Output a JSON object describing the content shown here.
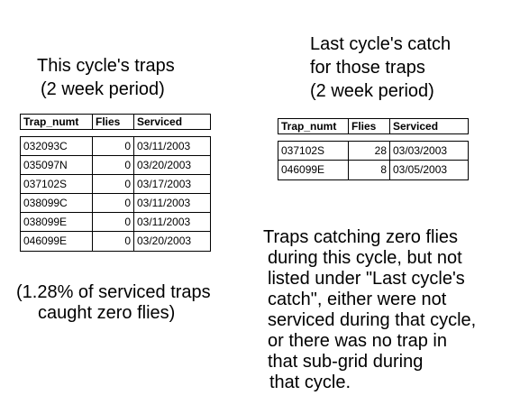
{
  "left_caption": {
    "line1": "This cycle's traps",
    "line2": "(2 week period)"
  },
  "right_caption": {
    "line1": "Last cycle's catch",
    "line2": "for those traps",
    "line3": "(2 week period)"
  },
  "columns": {
    "trap": "Trap_numt",
    "flies": "Flies",
    "serviced": "Serviced"
  },
  "this_cycle_rows": [
    {
      "trap": "032093C",
      "flies": "0",
      "serviced": "03/11/2003"
    },
    {
      "trap": "035097N",
      "flies": "0",
      "serviced": "03/20/2003"
    },
    {
      "trap": "037102S",
      "flies": "0",
      "serviced": "03/17/2003"
    },
    {
      "trap": "038099C",
      "flies": "0",
      "serviced": "03/11/2003"
    },
    {
      "trap": "038099E",
      "flies": "0",
      "serviced": "03/11/2003"
    },
    {
      "trap": "046099E",
      "flies": "0",
      "serviced": "03/20/2003"
    }
  ],
  "last_cycle_rows": [
    {
      "trap": "037102S",
      "flies": "28",
      "serviced": "03/03/2003"
    },
    {
      "trap": "046099E",
      "flies": "8",
      "serviced": "03/05/2003"
    }
  ],
  "percent_note": {
    "line1": "(1.28% of serviced traps",
    "line2": "caught zero flies)"
  },
  "explanation": {
    "line1": "Traps catching zero flies",
    "line2": "during this cycle, but not",
    "line3": "listed under \"Last cycle's",
    "line4": "catch\", either were not",
    "line5": "serviced during that cycle,",
    "line6": "or there was no trap in",
    "line7": "that sub-grid during",
    "line8": "that cycle."
  }
}
